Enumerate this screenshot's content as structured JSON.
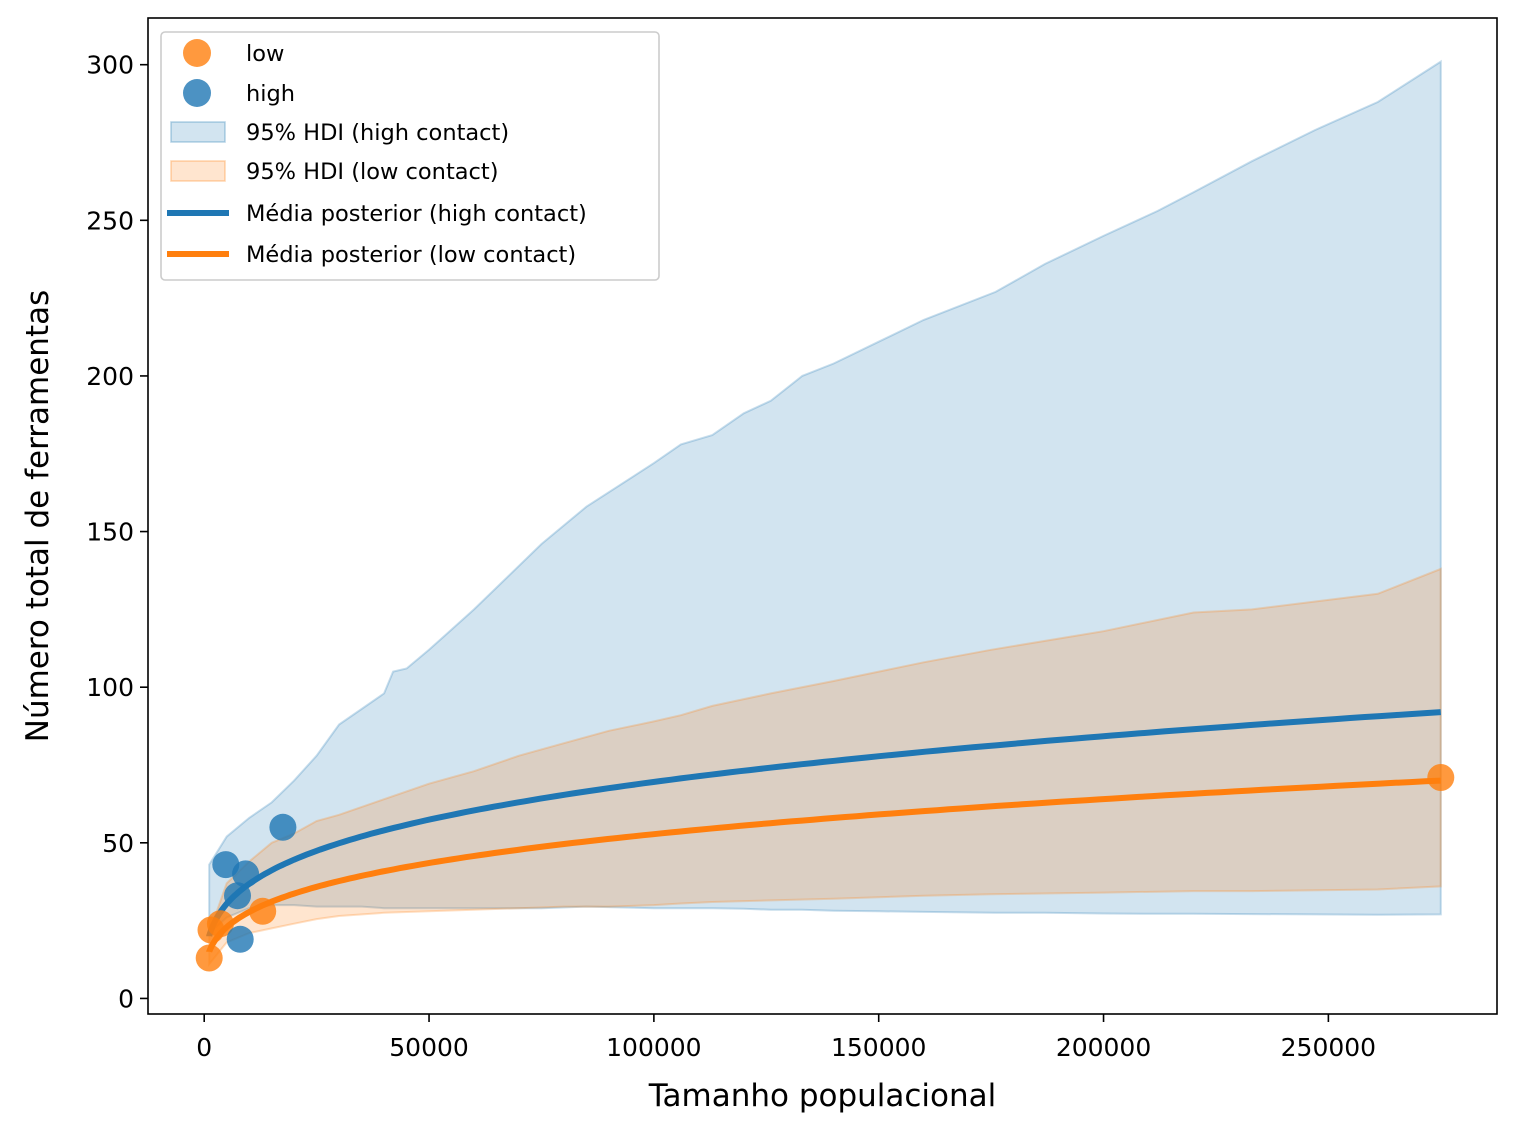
{
  "chart_data": {
    "type": "line",
    "title": "",
    "xlabel": "Tamanho populacional",
    "ylabel": "Número total de ferramentas",
    "xlim": [
      -12500,
      287500
    ],
    "ylim": [
      -5,
      315
    ],
    "xticks": [
      0,
      50000,
      100000,
      150000,
      200000,
      250000
    ],
    "yticks": [
      0,
      50,
      100,
      150,
      200,
      250,
      300
    ],
    "grid": false,
    "legend_position": "upper-left",
    "colors": {
      "blue": "#1f77b4",
      "orange": "#ff7f0e",
      "blue_fill": "#a6c8e2",
      "orange_fill": "#ffc68e"
    },
    "legend": [
      {
        "label": "low",
        "kind": "marker",
        "color": "#ff7f0e"
      },
      {
        "label": "high",
        "kind": "marker",
        "color": "#1f77b4"
      },
      {
        "label": "95% HDI (high contact)",
        "kind": "patch",
        "color": "#1f77b4"
      },
      {
        "label": "95% HDI (low contact)",
        "kind": "patch",
        "color": "#ff7f0e"
      },
      {
        "label": "Média posterior (high contact)",
        "kind": "line",
        "color": "#1f77b4"
      },
      {
        "label": "Média posterior (low contact)",
        "kind": "line",
        "color": "#ff7f0e"
      }
    ],
    "scatter": [
      {
        "name": "low",
        "color": "#ff7f0e",
        "points": [
          [
            1100,
            13
          ],
          [
            1500,
            22
          ],
          [
            3600,
            24
          ],
          [
            13000,
            28
          ],
          [
            275000,
            71
          ]
        ]
      },
      {
        "name": "high",
        "color": "#1f77b4",
        "points": [
          [
            4800,
            43
          ],
          [
            7400,
            33
          ],
          [
            8000,
            19
          ],
          [
            9200,
            40
          ],
          [
            17500,
            55
          ]
        ]
      }
    ],
    "hdi_high": {
      "x": [
        1100,
        5000,
        10000,
        15000,
        20000,
        25000,
        30000,
        35000,
        40000,
        42000,
        45000,
        50000,
        60000,
        65000,
        75000,
        85000,
        100000,
        106000,
        113000,
        120000,
        126000,
        133000,
        140000,
        150000,
        160000,
        176000,
        187000,
        200000,
        212000,
        220000,
        233000,
        247000,
        261000,
        275000
      ],
      "upper": [
        43,
        52,
        58,
        63,
        70,
        78,
        88,
        93,
        98,
        105,
        106,
        112,
        125,
        132,
        146,
        158,
        172,
        178,
        181,
        188,
        192,
        200,
        204,
        211,
        218,
        227,
        236,
        245,
        253,
        259,
        269,
        279,
        288,
        301
      ],
      "lower": [
        21,
        26,
        29,
        30,
        30,
        29.5,
        29.5,
        29.5,
        29,
        29,
        29,
        29,
        29,
        29,
        29,
        29.5,
        29,
        29,
        29,
        28.8,
        28.5,
        28.5,
        28.2,
        28,
        27.8,
        27.5,
        27.5,
        27.3,
        27.2,
        27.2,
        27.1,
        27,
        26.9,
        27
      ]
    },
    "hdi_low": {
      "x": [
        1100,
        5000,
        10000,
        15000,
        20000,
        25000,
        30000,
        40000,
        50000,
        60000,
        70000,
        80000,
        90000,
        100000,
        106000,
        113000,
        126000,
        140000,
        160000,
        175000,
        200000,
        220000,
        233000,
        261000,
        275000
      ],
      "upper": [
        21,
        37,
        44,
        50,
        53,
        57,
        59,
        64,
        69,
        73,
        78,
        82,
        86,
        89,
        91,
        94,
        98,
        102,
        108,
        112,
        118,
        124,
        125,
        130,
        138
      ],
      "lower": [
        11,
        18,
        21,
        22.5,
        24,
        25.5,
        26.5,
        27.5,
        28,
        28.5,
        29,
        29.5,
        29.5,
        30,
        30.5,
        31,
        31.5,
        32,
        33,
        33.5,
        34,
        34.5,
        34.5,
        35,
        36
      ]
    },
    "mean_curves": [
      {
        "name": "Média posterior (high contact)",
        "color": "#1f77b4",
        "x0": 1100,
        "y0": 20,
        "x1": 275000,
        "y1": 92
      },
      {
        "name": "Média posterior (low contact)",
        "color": "#ff7f0e",
        "x0": 1100,
        "y0": 15,
        "x1": 275000,
        "y1": 70
      }
    ]
  }
}
